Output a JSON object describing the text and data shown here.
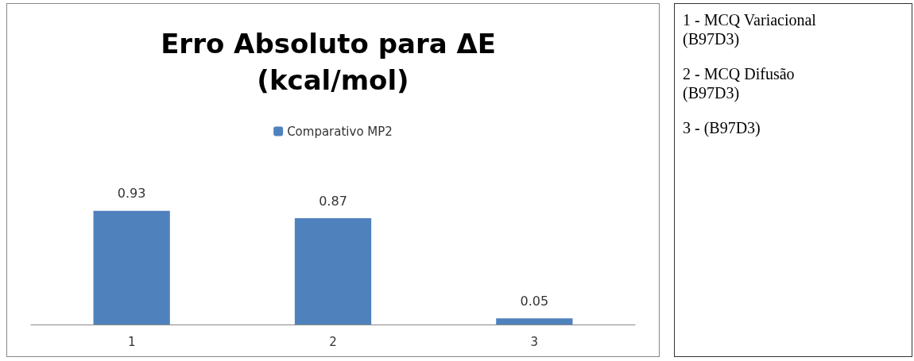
{
  "chart_data": {
    "type": "bar",
    "title": "Erro Absoluto para ΔE (kcal/mol)",
    "categories": [
      "1",
      "2",
      "3"
    ],
    "series": [
      {
        "name": "Comparativo MP2",
        "color": "#4f81bd",
        "values": [
          0.93,
          0.87,
          0.05
        ]
      }
    ],
    "data_labels": true,
    "legend": "top",
    "annotations": [
      "1 - MCQ Variacional (B97D3)",
      "2 - MCQ Difusão (B97D3)",
      "3 - (B97D3)"
    ]
  }
}
